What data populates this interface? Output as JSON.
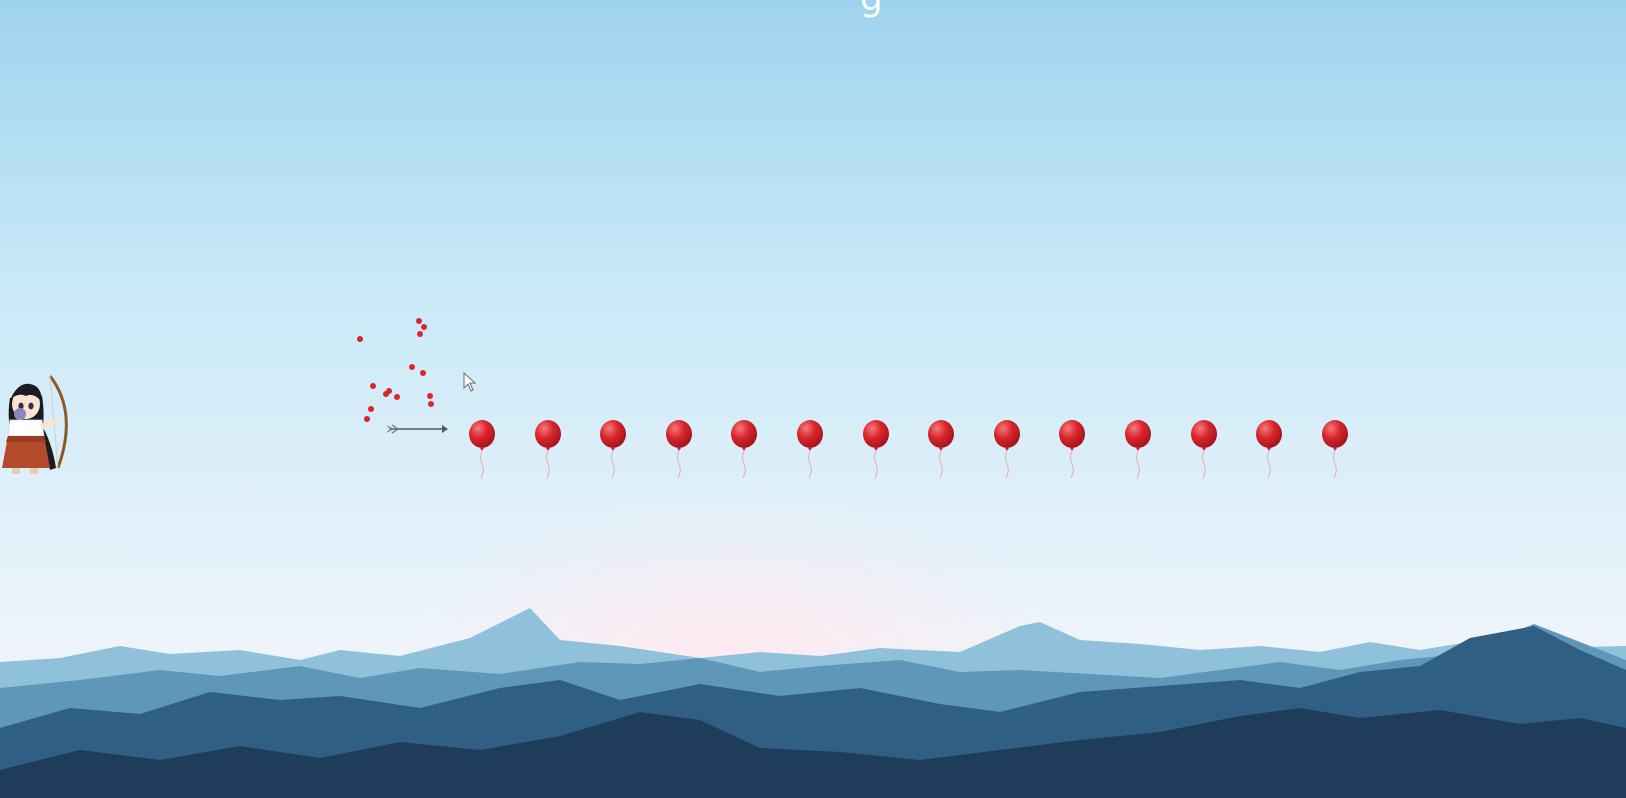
{
  "game": {
    "title": "g",
    "scene": "sky-with-mountains",
    "balloon_count": 14,
    "burst_fragment_count": 14,
    "colors": {
      "balloon": "#d9262c",
      "balloon_highlight": "#f47a7d",
      "sky_top": "#9fd3ee",
      "sky_mid": "#c8e9f8",
      "sky_bottom": "#eef4fa",
      "mountain_far": "#8fc1da",
      "mountain_mid": "#5e97b8",
      "mountain_near": "#2f5f82",
      "mountain_front": "#1f3d5a"
    },
    "icons": {
      "archer": "archer-character-icon",
      "arrow": "arrow-icon",
      "cursor": "mouse-pointer-icon",
      "balloon": "balloon-icon"
    }
  }
}
